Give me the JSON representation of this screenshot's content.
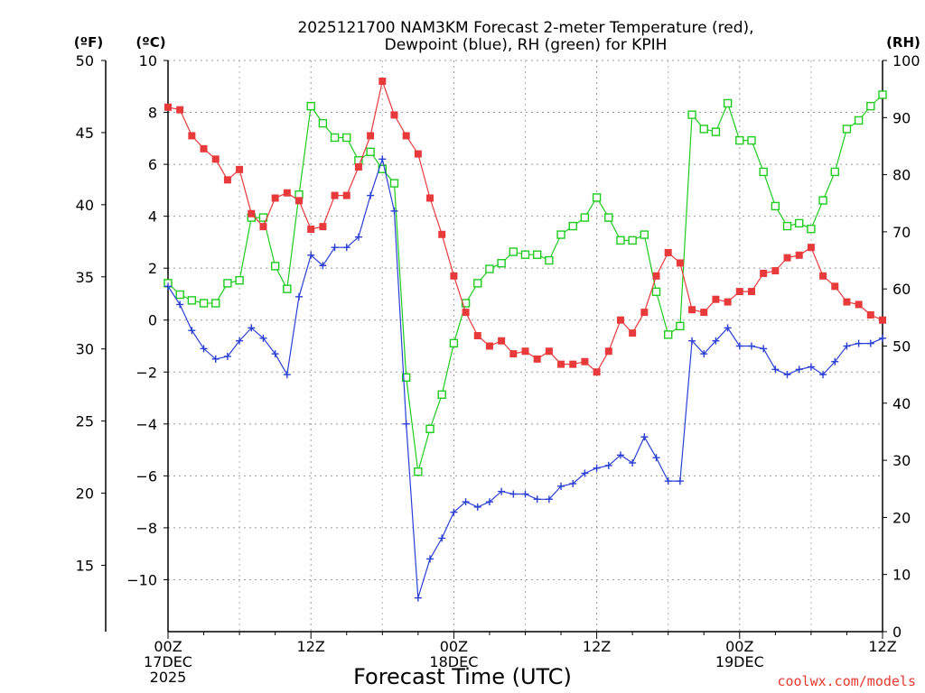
{
  "chart_data": {
    "type": "line",
    "title_line1": "2025121700 NAM3KM Forecast 2-meter Temperature (red),",
    "title_line2": "Dewpoint (blue), RH (green) for KPIH",
    "xlabel": "Forecast Time (UTC)",
    "credit": "coolwx.com/models",
    "units": {
      "fahrenheit": "(ºF)",
      "celsius": "(ºC)",
      "rh": "(RH)"
    },
    "x_range_hours": [
      0,
      60
    ],
    "x_ticks": [
      {
        "hour": 0,
        "line1": "00Z",
        "line2": "17DEC",
        "line3": "2025"
      },
      {
        "hour": 12,
        "line1": "12Z",
        "line2": "",
        "line3": ""
      },
      {
        "hour": 24,
        "line1": "00Z",
        "line2": "18DEC",
        "line3": ""
      },
      {
        "hour": 36,
        "line1": "12Z",
        "line2": "",
        "line3": ""
      },
      {
        "hour": 48,
        "line1": "00Z",
        "line2": "19DEC",
        "line3": ""
      },
      {
        "hour": 60,
        "line1": "12Z",
        "line2": "",
        "line3": ""
      }
    ],
    "celsius_axis": {
      "range": [
        -12,
        10
      ],
      "ticks": [
        "10",
        "8",
        "6",
        "4",
        "2",
        "0",
        "−2",
        "−4",
        "−6",
        "−8",
        "−10"
      ],
      "tick_values": [
        10,
        8,
        6,
        4,
        2,
        0,
        -2,
        -4,
        -6,
        -8,
        -10
      ]
    },
    "fahrenheit_axis": {
      "range": [
        10.4,
        50
      ],
      "ticks": [
        "50",
        "45",
        "40",
        "35",
        "30",
        "25",
        "20",
        "15"
      ],
      "tick_values": [
        50,
        45,
        40,
        35,
        30,
        25,
        20,
        15
      ]
    },
    "rh_axis": {
      "range": [
        0,
        100
      ],
      "ticks": [
        "100",
        "90",
        "80",
        "70",
        "60",
        "50",
        "40",
        "30",
        "20",
        "10",
        "0"
      ],
      "tick_values": [
        100,
        90,
        80,
        70,
        60,
        50,
        40,
        30,
        20,
        10,
        0
      ]
    },
    "series": [
      {
        "name": "2-meter Temperature",
        "units": "C",
        "color": "#e8393b",
        "marker": "filled-square",
        "values": [
          8.2,
          8.1,
          7.1,
          6.6,
          6.2,
          5.4,
          5.8,
          4.1,
          3.6,
          4.7,
          4.9,
          4.6,
          3.5,
          3.6,
          4.8,
          4.8,
          5.9,
          7.1,
          9.2,
          7.9,
          7.1,
          6.4,
          4.7,
          3.3,
          1.7,
          0.3,
          -0.6,
          -1.0,
          -0.8,
          -1.3,
          -1.2,
          -1.5,
          -1.2,
          -1.7,
          -1.7,
          -1.6,
          -2.0,
          -1.2,
          0.0,
          -0.5,
          0.3,
          1.7,
          2.6,
          2.2,
          0.4,
          0.3,
          0.8,
          0.7,
          1.1,
          1.1,
          1.8,
          1.9,
          2.4,
          2.5,
          2.8,
          1.7,
          1.3,
          0.7,
          0.6,
          0.2,
          0.0
        ]
      },
      {
        "name": "Dewpoint",
        "units": "C",
        "color": "#2a3fd6",
        "marker": "plus",
        "values": [
          1.3,
          0.6,
          -0.4,
          -1.1,
          -1.5,
          -1.4,
          -0.8,
          -0.3,
          -0.7,
          -1.3,
          -2.1,
          0.9,
          2.5,
          2.1,
          2.8,
          2.8,
          3.2,
          4.8,
          6.2,
          4.2,
          -4.0,
          -10.7,
          -9.2,
          -8.4,
          -7.4,
          -7.0,
          -7.2,
          -7.0,
          -6.6,
          -6.7,
          -6.7,
          -6.9,
          -6.9,
          -6.4,
          -6.3,
          -5.9,
          -5.7,
          -5.6,
          -5.2,
          -5.5,
          -4.5,
          -5.3,
          -6.2,
          -6.2,
          -0.8,
          -1.3,
          -0.8,
          -0.3,
          -1.0,
          -1.0,
          -1.1,
          -1.9,
          -2.1,
          -1.9,
          -1.8,
          -2.1,
          -1.6,
          -1.0,
          -0.9,
          -0.9,
          -0.7
        ]
      },
      {
        "name": "RH",
        "units": "%",
        "color": "#1ecc1e",
        "marker": "open-square",
        "values": [
          61,
          59,
          58,
          57.5,
          57.5,
          61,
          61.5,
          72.5,
          72.5,
          64,
          60,
          76.5,
          92,
          89,
          86.5,
          86.5,
          82.5,
          84,
          81,
          78.5,
          44.5,
          28,
          35.5,
          41.5,
          50.5,
          57.5,
          61,
          63.5,
          64.5,
          66.5,
          66,
          66,
          65,
          69.5,
          71,
          72.5,
          76,
          72.5,
          68.5,
          68.5,
          69.5,
          59.5,
          52,
          53.5,
          90.5,
          88,
          87.5,
          92.5,
          86,
          86,
          80.5,
          74.5,
          71,
          71.5,
          70.5,
          75.5,
          80.5,
          88,
          89.5,
          92,
          94
        ]
      }
    ]
  }
}
